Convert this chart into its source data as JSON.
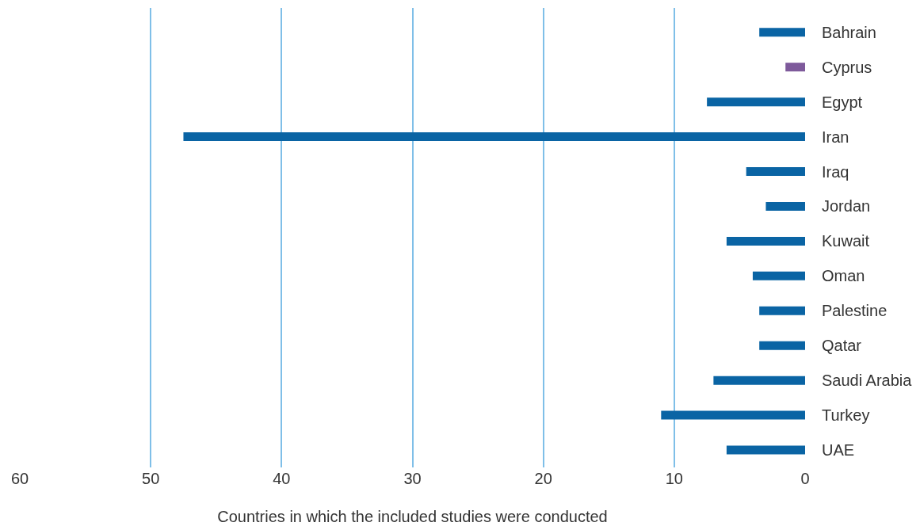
{
  "chart_data": {
    "type": "bar",
    "orientation": "horizontal",
    "xlabel": "Countries in which the included studies were conducted",
    "categories": [
      "Bahrain",
      "Cyprus",
      "Egypt",
      "Iran",
      "Iraq",
      "Jordan",
      "Kuwait",
      "Oman",
      "Palestine",
      "Qatar",
      "Saudi Arabia",
      "Turkey",
      "UAE"
    ],
    "values": [
      3.5,
      1.5,
      7.5,
      47.5,
      4.5,
      3,
      6,
      4,
      3.5,
      3.5,
      7,
      11,
      6
    ],
    "colors": [
      "#0a64a4",
      "#7e5a9b",
      "#0a64a4",
      "#0a64a4",
      "#0a64a4",
      "#0a64a4",
      "#0a64a4",
      "#0a64a4",
      "#0a64a4",
      "#0a64a4",
      "#0a64a4",
      "#0a64a4",
      "#0a64a4"
    ],
    "xlim": [
      60,
      0
    ],
    "xticks": [
      60,
      50,
      40,
      30,
      20,
      10,
      0
    ],
    "grid": "x"
  }
}
